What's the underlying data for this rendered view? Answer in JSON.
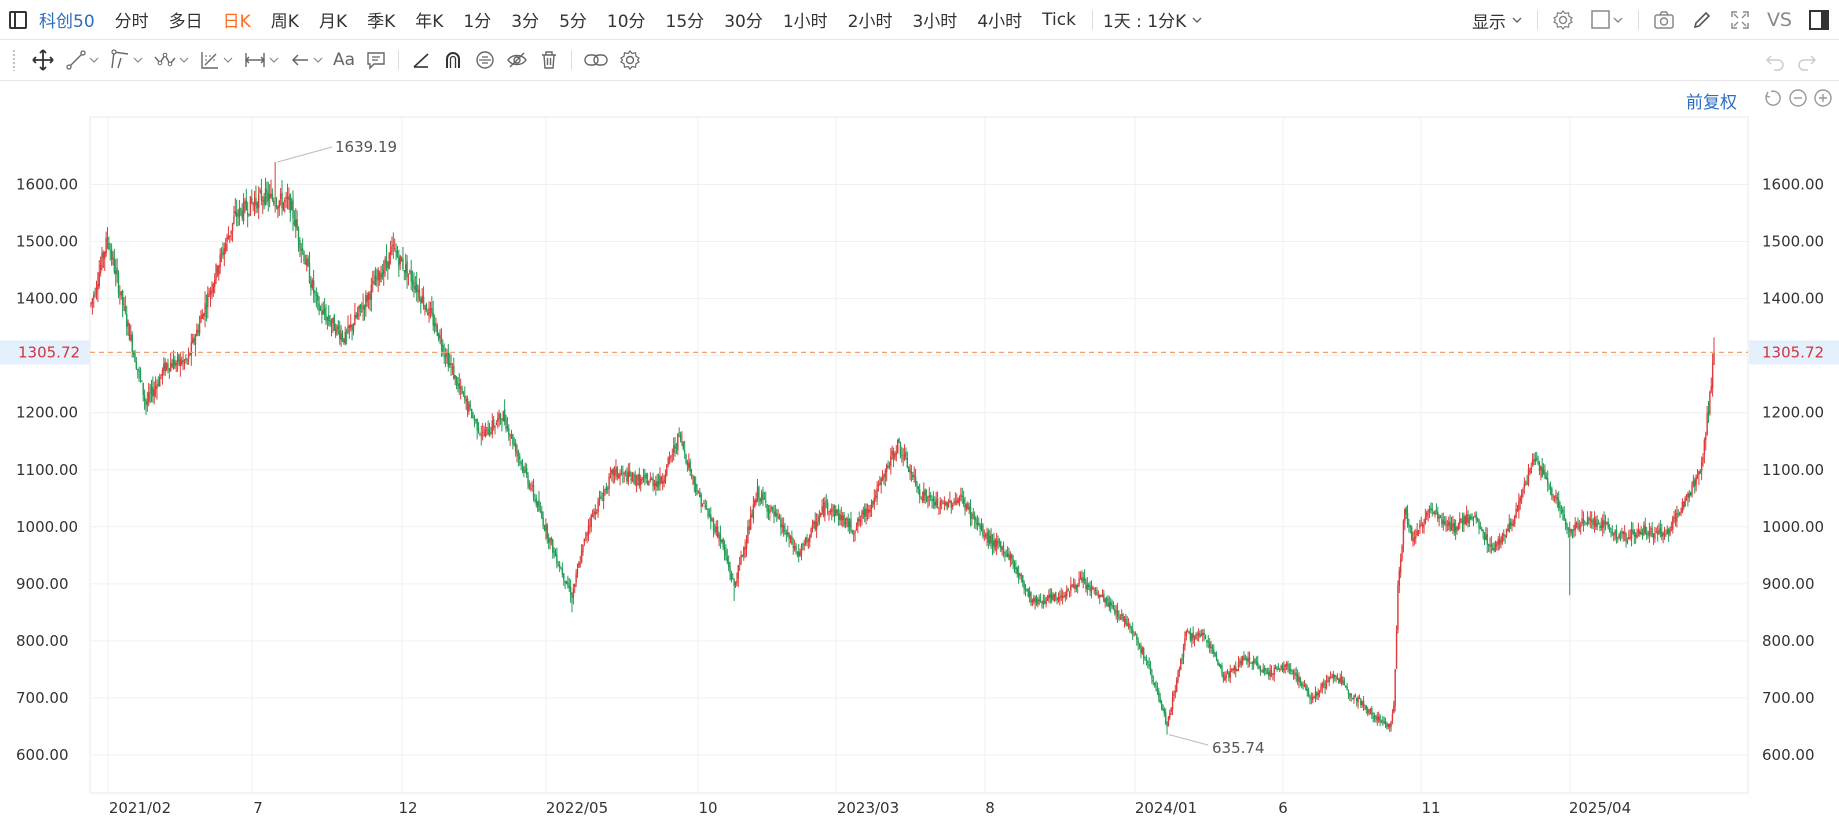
{
  "toolbar": {
    "symbol": "科创50",
    "periods": [
      "分时",
      "多日",
      "日K",
      "周K",
      "月K",
      "季K",
      "年K",
      "1分",
      "3分",
      "5分",
      "10分",
      "15分",
      "30分",
      "1小时",
      "2小时",
      "3小时",
      "4小时",
      "Tick"
    ],
    "active_period": "日K",
    "multi_period": "1天 : 1分K",
    "display_label": "显示",
    "vs_label": "VS"
  },
  "drawing_tools": {
    "text_tool_label": "Aa"
  },
  "chart_controls": {
    "adjust_label": "前复权"
  },
  "colors": {
    "up": "#e03a3a",
    "down": "#1f9d55",
    "accent": "#2b6cc4",
    "active_period": "#ff6d1e",
    "price_line": "#f0a070",
    "price_tag_bg": "#e4f0fb",
    "price_tag_text": "#d6323f",
    "grid": "#f0f0f0"
  },
  "chart_data": {
    "type": "candlestick",
    "title": "",
    "ylim": [
      575,
      1700
    ],
    "y_ticks": [
      "600.00",
      "700.00",
      "800.00",
      "900.00",
      "1000.00",
      "1100.00",
      "1200.00",
      "1300.00",
      "1400.00",
      "1500.00",
      "1600.00"
    ],
    "x_tick_labels": [
      "2021/02",
      "7",
      "12",
      "2022/05",
      "10",
      "2023/03",
      "8",
      "2024/01",
      "6",
      "11",
      "2025/04"
    ],
    "current_price": 1305.72,
    "current_price_label": "1305.72",
    "annotations": [
      {
        "label": "1639.19",
        "value": 1639.19,
        "type": "high"
      },
      {
        "label": "635.74",
        "value": 635.74,
        "type": "low"
      }
    ],
    "trend_anchors": [
      {
        "i": 0,
        "v": 1390
      },
      {
        "i": 12,
        "v": 1505
      },
      {
        "i": 24,
        "v": 1380
      },
      {
        "i": 40,
        "v": 1215
      },
      {
        "i": 55,
        "v": 1285
      },
      {
        "i": 70,
        "v": 1290
      },
      {
        "i": 92,
        "v": 1455
      },
      {
        "i": 105,
        "v": 1545
      },
      {
        "i": 125,
        "v": 1580
      },
      {
        "i": 145,
        "v": 1565
      },
      {
        "i": 165,
        "v": 1385
      },
      {
        "i": 185,
        "v": 1330
      },
      {
        "i": 205,
        "v": 1420
      },
      {
        "i": 220,
        "v": 1485
      },
      {
        "i": 235,
        "v": 1430
      },
      {
        "i": 252,
        "v": 1345
      },
      {
        "i": 268,
        "v": 1240
      },
      {
        "i": 285,
        "v": 1160
      },
      {
        "i": 300,
        "v": 1195
      },
      {
        "i": 320,
        "v": 1070
      },
      {
        "i": 337,
        "v": 955
      },
      {
        "i": 350,
        "v": 880
      },
      {
        "i": 362,
        "v": 1005
      },
      {
        "i": 380,
        "v": 1095
      },
      {
        "i": 400,
        "v": 1080
      },
      {
        "i": 415,
        "v": 1080
      },
      {
        "i": 428,
        "v": 1160
      },
      {
        "i": 442,
        "v": 1055
      },
      {
        "i": 458,
        "v": 980
      },
      {
        "i": 468,
        "v": 895
      },
      {
        "i": 485,
        "v": 1060
      },
      {
        "i": 500,
        "v": 1010
      },
      {
        "i": 515,
        "v": 950
      },
      {
        "i": 535,
        "v": 1040
      },
      {
        "i": 555,
        "v": 995
      },
      {
        "i": 570,
        "v": 1050
      },
      {
        "i": 587,
        "v": 1145
      },
      {
        "i": 603,
        "v": 1060
      },
      {
        "i": 618,
        "v": 1035
      },
      {
        "i": 633,
        "v": 1050
      },
      {
        "i": 650,
        "v": 985
      },
      {
        "i": 668,
        "v": 950
      },
      {
        "i": 685,
        "v": 870
      },
      {
        "i": 703,
        "v": 875
      },
      {
        "i": 720,
        "v": 905
      },
      {
        "i": 738,
        "v": 870
      },
      {
        "i": 757,
        "v": 825
      },
      {
        "i": 772,
        "v": 740
      },
      {
        "i": 783,
        "v": 650
      },
      {
        "i": 797,
        "v": 810
      },
      {
        "i": 812,
        "v": 805
      },
      {
        "i": 825,
        "v": 735
      },
      {
        "i": 840,
        "v": 770
      },
      {
        "i": 855,
        "v": 745
      },
      {
        "i": 872,
        "v": 755
      },
      {
        "i": 888,
        "v": 700
      },
      {
        "i": 905,
        "v": 740
      },
      {
        "i": 920,
        "v": 700
      },
      {
        "i": 935,
        "v": 665
      },
      {
        "i": 945,
        "v": 650
      },
      {
        "i": 948,
        "v": 690
      },
      {
        "i": 951,
        "v": 890
      },
      {
        "i": 956,
        "v": 1030
      },
      {
        "i": 962,
        "v": 975
      },
      {
        "i": 975,
        "v": 1035
      },
      {
        "i": 990,
        "v": 995
      },
      {
        "i": 1005,
        "v": 1020
      },
      {
        "i": 1020,
        "v": 960
      },
      {
        "i": 1035,
        "v": 1010
      },
      {
        "i": 1050,
        "v": 1120
      },
      {
        "i": 1060,
        "v": 1080
      },
      {
        "i": 1070,
        "v": 1025
      },
      {
        "i": 1076,
        "v": 985
      },
      {
        "i": 1085,
        "v": 1015
      },
      {
        "i": 1100,
        "v": 1005
      },
      {
        "i": 1115,
        "v": 980
      },
      {
        "i": 1130,
        "v": 995
      },
      {
        "i": 1145,
        "v": 985
      },
      {
        "i": 1160,
        "v": 1045
      },
      {
        "i": 1172,
        "v": 1105
      },
      {
        "i": 1177,
        "v": 1210
      },
      {
        "i": 1181,
        "v": 1305
      }
    ]
  }
}
